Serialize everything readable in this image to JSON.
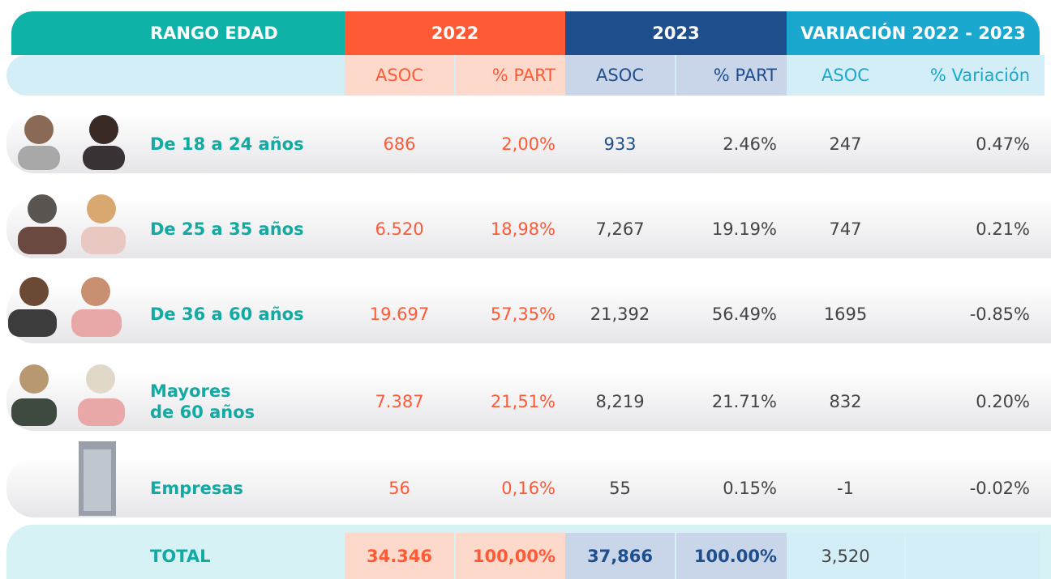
{
  "header": {
    "columns": [
      "RANGO EDAD",
      "2022",
      "2023",
      "VARIACIÓN 2022 - 2023"
    ],
    "subcolumns": [
      "ASOC",
      "% PART",
      "ASOC",
      "% PART",
      "ASOC",
      "% Variación"
    ]
  },
  "rows": [
    {
      "label": "De 18 a 24 años",
      "values": [
        "686",
        "2,00%",
        "933",
        "2.46%",
        "247",
        "0.47%"
      ]
    },
    {
      "label": "De 25 a 35 años",
      "values": [
        "6.520",
        "18,98%",
        "7,267",
        "19.19%",
        "747",
        "0.21%"
      ]
    },
    {
      "label": "De 36 a 60 años",
      "values": [
        "19.697",
        "57,35%",
        "21,392",
        "56.49%",
        "1695",
        "-0.85%"
      ]
    },
    {
      "label": "Mayores de 60 años",
      "values": [
        "7.387",
        "21,51%",
        "8,219",
        "21.71%",
        "832",
        "0.20%"
      ]
    },
    {
      "label": "Empresas",
      "values": [
        "56",
        "0,16%",
        "55",
        "0.15%",
        "-1",
        "-0.02%"
      ]
    }
  ],
  "total": {
    "label": "TOTAL",
    "values": [
      "34.346",
      "100,00%",
      "37,866",
      "100.00%",
      "3,520"
    ]
  }
}
